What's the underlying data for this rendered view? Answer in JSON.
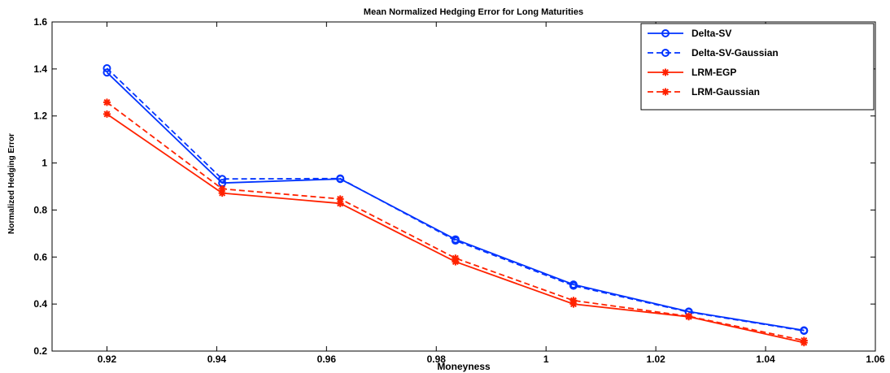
{
  "chart_data": {
    "type": "line",
    "title": "Mean Normalized Hedging Error for Long Maturities",
    "xlabel": "Moneyness",
    "ylabel": "Normalized Hedging Error",
    "xlim": [
      0.91,
      1.06
    ],
    "ylim": [
      0.2,
      1.6
    ],
    "xticks": [
      0.92,
      0.94,
      0.96,
      0.98,
      1,
      1.02,
      1.04,
      1.06
    ],
    "xtick_labels": [
      "0.92",
      "0.94",
      "0.96",
      "0.98",
      "1",
      "1.02",
      "1.04",
      "1.06"
    ],
    "yticks": [
      0.2,
      0.4,
      0.6,
      0.8,
      1,
      1.2,
      1.4,
      1.6
    ],
    "ytick_labels": [
      "0.2",
      "0.4",
      "0.6",
      "0.8",
      "1",
      "1.2",
      "1.4",
      "1.6"
    ],
    "grid": false,
    "legend_position": "top-right",
    "x": [
      0.92,
      0.941,
      0.9625,
      0.9835,
      1.005,
      1.026,
      1.047
    ],
    "series": [
      {
        "name": "Delta-SV",
        "color": "#0033ff",
        "dash": "solid",
        "marker": "circle",
        "values": [
          1.385,
          0.915,
          0.932,
          0.675,
          0.483,
          0.368,
          0.288
        ]
      },
      {
        "name": "Delta-SV-Gaussian",
        "color": "#0033ff",
        "dash": "dashed",
        "marker": "circle",
        "values": [
          1.403,
          0.932,
          0.934,
          0.67,
          0.478,
          0.366,
          0.286
        ]
      },
      {
        "name": "LRM-EGP",
        "color": "#ff2200",
        "dash": "solid",
        "marker": "star",
        "values": [
          1.208,
          0.872,
          0.828,
          0.58,
          0.4,
          0.346,
          0.236
        ]
      },
      {
        "name": "LRM-Gaussian",
        "color": "#ff2200",
        "dash": "dashed",
        "marker": "star",
        "values": [
          1.258,
          0.89,
          0.847,
          0.595,
          0.415,
          0.348,
          0.245
        ]
      }
    ]
  }
}
